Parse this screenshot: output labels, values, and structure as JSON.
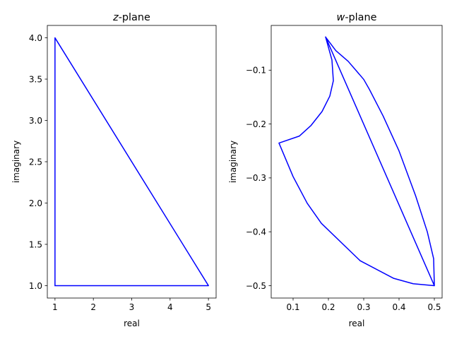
{
  "chart_data": [
    {
      "type": "line",
      "title_var": "z",
      "title_rest": "-plane",
      "xlabel": "real",
      "ylabel": "imaginary",
      "xlim": [
        0.8,
        5.2
      ],
      "ylim": [
        0.85,
        4.15
      ],
      "xticks": [
        1,
        2,
        3,
        4,
        5
      ],
      "xtick_labels": [
        "1",
        "2",
        "3",
        "4",
        "5"
      ],
      "yticks": [
        1.0,
        1.5,
        2.0,
        2.5,
        3.0,
        3.5,
        4.0
      ],
      "ytick_labels": [
        "1.0",
        "1.5",
        "2.0",
        "2.5",
        "3.0",
        "3.5",
        "4.0"
      ],
      "grid": false,
      "series": [
        {
          "color": "#0000ff",
          "x": [
            1,
            5,
            1,
            1
          ],
          "y": [
            1,
            1,
            4,
            1
          ]
        }
      ]
    },
    {
      "type": "line",
      "title_var": "w",
      "title_rest": "-plane",
      "xlabel": "real",
      "ylabel": "imaginary",
      "xlim": [
        0.038,
        0.522
      ],
      "ylim": [
        -0.523,
        -0.017
      ],
      "xticks": [
        0.1,
        0.2,
        0.3,
        0.4,
        0.5
      ],
      "xtick_labels": [
        "0.1",
        "0.2",
        "0.3",
        "0.4",
        "0.5"
      ],
      "yticks": [
        -0.5,
        -0.4,
        -0.3,
        -0.2,
        -0.1
      ],
      "ytick_labels": [
        "−0.5",
        "−0.4",
        "−0.3",
        "−0.2",
        "−0.1"
      ],
      "grid": false,
      "series": [
        {
          "color": "#0000ff",
          "x": [
            0.5,
            0.498,
            0.48,
            0.447,
            0.4,
            0.355,
            0.316,
            0.3,
            0.256,
            0.221,
            0.192,
            0.5,
            0.5,
            0.44,
            0.385,
            0.29,
            0.18,
            0.14,
            0.1,
            0.06,
            0.118,
            0.151,
            0.182,
            0.204,
            0.214,
            0.21,
            0.192
          ],
          "y": [
            -0.5,
            -0.45,
            -0.4,
            -0.3333,
            -0.25,
            -0.1852,
            -0.1356,
            -0.1172,
            -0.0836,
            -0.0638,
            -0.0385,
            -0.5,
            -0.5,
            -0.4965,
            -0.4865,
            -0.4538,
            -0.3843,
            -0.3471,
            -0.2976,
            -0.2353,
            -0.2223,
            -0.2025,
            -0.1768,
            -0.1482,
            -0.1196,
            -0.0811,
            -0.0385
          ]
        }
      ]
    }
  ]
}
